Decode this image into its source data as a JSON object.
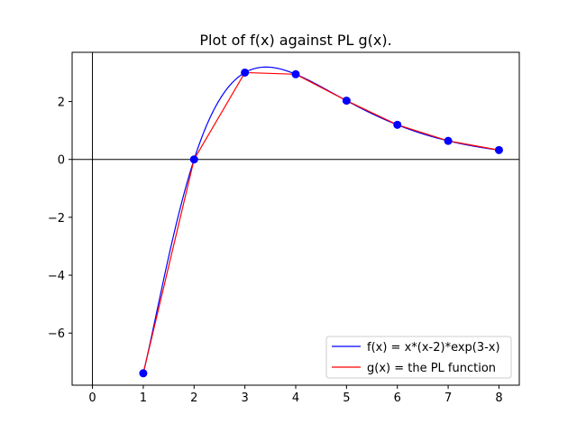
{
  "chart_data": {
    "type": "line",
    "title": "Plot of f(x) against PL g(x).",
    "xlabel": "",
    "ylabel": "",
    "xlim": [
      -0.4,
      8.4
    ],
    "ylim": [
      -7.8,
      3.7
    ],
    "x_ticks": [
      0,
      1,
      2,
      3,
      4,
      5,
      6,
      7,
      8
    ],
    "x_tick_labels": [
      "0",
      "1",
      "2",
      "3",
      "4",
      "5",
      "6",
      "7",
      "8"
    ],
    "y_ticks": [
      -6,
      -4,
      -2,
      0,
      2
    ],
    "y_tick_labels": [
      "−6",
      "−4",
      "−2",
      "0",
      "2"
    ],
    "grid": false,
    "axis_lines": {
      "x": 0,
      "y": 0
    },
    "legend_position": "lower-right",
    "series": [
      {
        "name": "f(x) = x*(x-2)*exp(3-x)",
        "kind": "function",
        "expression": "x*(x-2)*exp(3-x)",
        "x_range": [
          1,
          8
        ],
        "color": "#0000ff"
      },
      {
        "name": "g(x) = the PL function",
        "kind": "polyline",
        "x": [
          1,
          2,
          3,
          4,
          5,
          6,
          7,
          8
        ],
        "y": [
          -7.389,
          0,
          3.0,
          2.943,
          2.03,
          1.196,
          0.641,
          0.323
        ],
        "color": "#ff0000"
      }
    ],
    "markers": {
      "x": [
        1,
        2,
        3,
        4,
        5,
        6,
        7,
        8
      ],
      "y": [
        -7.389,
        0,
        3.0,
        2.943,
        2.03,
        1.196,
        0.641,
        0.323
      ],
      "color": "#0000ff"
    }
  }
}
